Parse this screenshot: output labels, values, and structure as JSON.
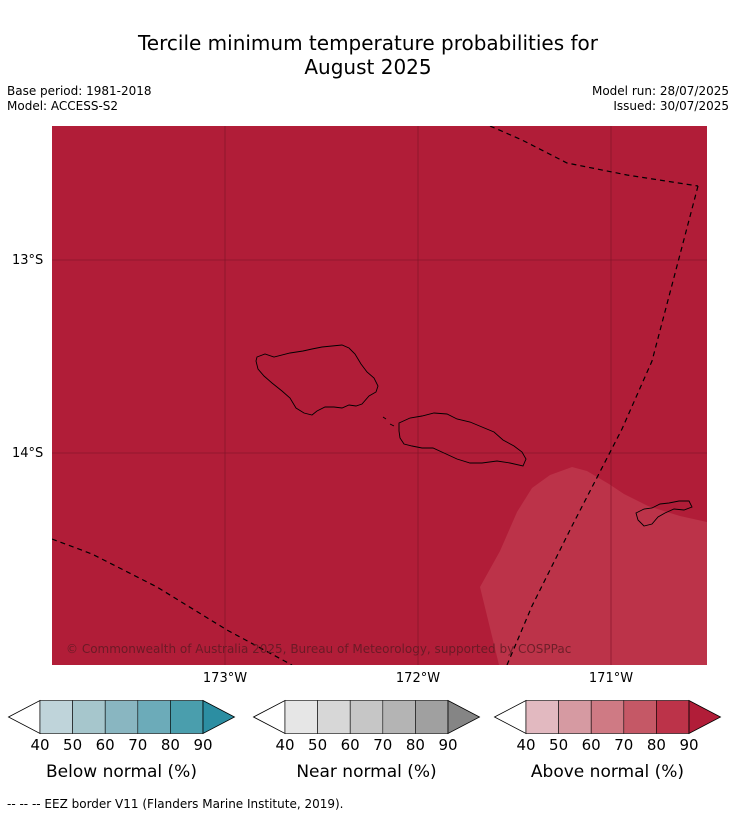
{
  "title_line1": "Tercile minimum temperature probabilities for",
  "title_line2": "August 2025",
  "base_period": "Base period: 1981-2018",
  "model": "Model: ACCESS-S2",
  "model_run": "Model run: 28/07/2025",
  "issued": "Issued: 30/07/2025",
  "map": {
    "lat_labels": [
      "13°S",
      "14°S"
    ],
    "lon_labels": [
      "173°W",
      "172°W",
      "171°W"
    ],
    "copyright": "© Commonwealth of Australia 2025, Bureau of Meteorology, supported by COSPPac",
    "colors": {
      "above_90": "#b11d38",
      "above_80": "#bc3349",
      "grid": "#7d1428",
      "coastline": "#000000",
      "eez": "#000000"
    }
  },
  "legends": [
    {
      "title": "Below normal (%)",
      "ticks": [
        "40",
        "50",
        "60",
        "70",
        "80",
        "90"
      ],
      "colors": [
        "#ffffff",
        "#bfd4da",
        "#a6c6cc",
        "#89b6c1",
        "#6cabb9",
        "#4a9ead",
        "#2c8ea2"
      ]
    },
    {
      "title": "Near normal (%)",
      "ticks": [
        "40",
        "50",
        "60",
        "70",
        "80",
        "90"
      ],
      "colors": [
        "#ffffff",
        "#e6e6e6",
        "#d7d7d7",
        "#c6c6c6",
        "#b4b4b4",
        "#a0a0a0",
        "#858585"
      ]
    },
    {
      "title": "Above normal (%)",
      "ticks": [
        "40",
        "50",
        "60",
        "70",
        "80",
        "90"
      ],
      "colors": [
        "#ffffff",
        "#e2b9c0",
        "#d69aa2",
        "#cf7a84",
        "#c55866",
        "#bc3349",
        "#b11d38"
      ]
    }
  ],
  "footer": "--  --  -- EEZ border V11 (Flanders Marine Institute, 2019)."
}
